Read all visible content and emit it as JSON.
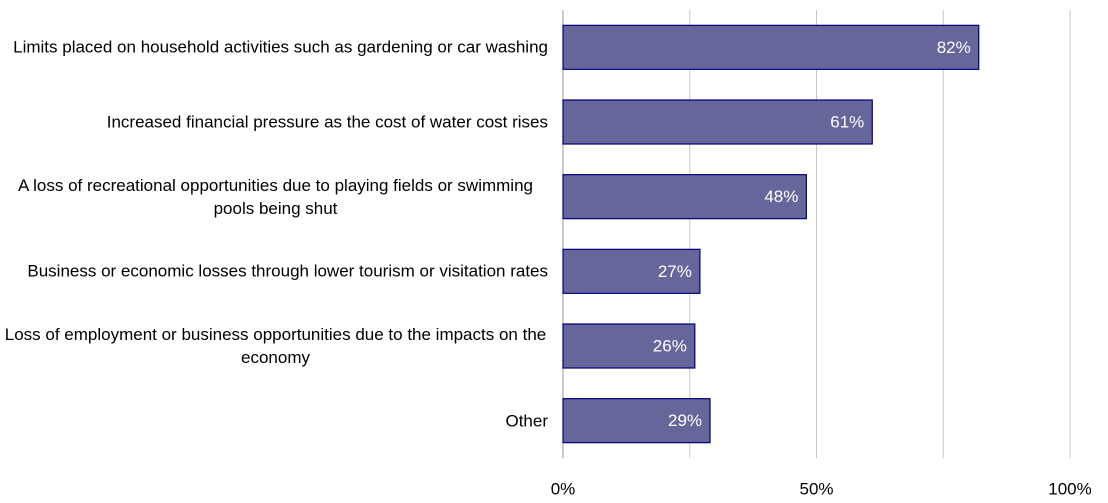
{
  "chart_data": {
    "type": "hbar",
    "categories": [
      "Limits placed on household activities such as gardening or car washing",
      "Increased financial pressure as the cost of water cost rises",
      "A loss of recreational opportunities due to playing fields or swimming pools being shut",
      "Business or economic losses through lower tourism or visitation rates",
      "Loss of employment or business opportunities due to the impacts on the economy",
      "Other"
    ],
    "values": [
      82,
      61,
      48,
      27,
      26,
      29
    ],
    "value_labels": [
      "82%",
      "61%",
      "48%",
      "27%",
      "26%",
      "29%"
    ],
    "color": "#66669a",
    "border_color": "#000080",
    "xlim": [
      0,
      100
    ],
    "xticks": [
      {
        "value": 0,
        "label": "0%"
      },
      {
        "value": 50,
        "label": "50%"
      },
      {
        "value": 100,
        "label": "100%"
      }
    ],
    "gridlines": [
      25,
      50,
      75,
      100
    ],
    "grid": true
  }
}
